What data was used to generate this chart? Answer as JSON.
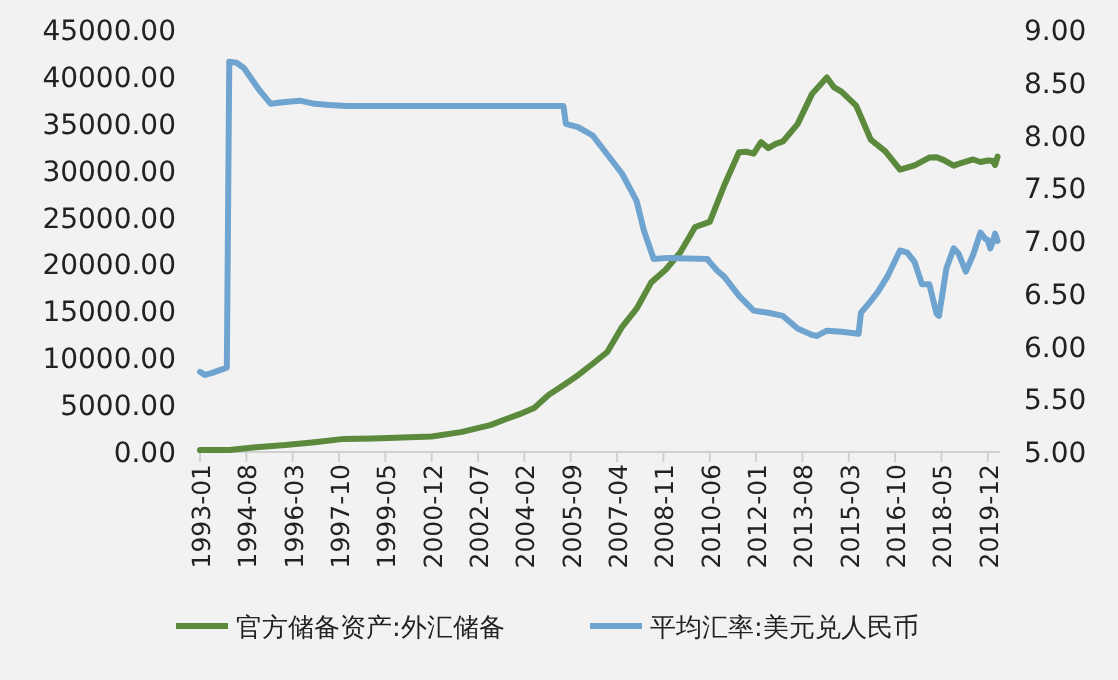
{
  "chart_data": {
    "type": "line",
    "legend": "bottom",
    "xlim": [
      "1993-01",
      "2020-05"
    ],
    "xticks": [
      "1993-01",
      "1994-08",
      "1996-03",
      "1997-10",
      "1999-05",
      "2000-12",
      "2002-07",
      "2004-02",
      "2005-09",
      "2007-04",
      "2008-11",
      "2010-06",
      "2012-01",
      "2013-08",
      "2015-03",
      "2016-10",
      "2018-05",
      "2019-12"
    ],
    "ylim": [
      0,
      45000
    ],
    "yticks": [
      {
        "value": 0,
        "label": "0.00"
      },
      {
        "value": 5000,
        "label": "5000.00"
      },
      {
        "value": 10000,
        "label": "10000.00"
      },
      {
        "value": 15000,
        "label": "15000.00"
      },
      {
        "value": 20000,
        "label": "20000.00"
      },
      {
        "value": 25000,
        "label": "25000.00"
      },
      {
        "value": 30000,
        "label": "30000.00"
      },
      {
        "value": 35000,
        "label": "35000.00"
      },
      {
        "value": 40000,
        "label": "40000.00"
      },
      {
        "value": 45000,
        "label": "45000.00"
      }
    ],
    "y2lim": [
      5,
      9
    ],
    "y2ticks": [
      {
        "value": 5,
        "label": "5.00"
      },
      {
        "value": 5.5,
        "label": "5.50"
      },
      {
        "value": 6,
        "label": "6.00"
      },
      {
        "value": 6.5,
        "label": "6.50"
      },
      {
        "value": 7,
        "label": "7.00"
      },
      {
        "value": 7.5,
        "label": "7.50"
      },
      {
        "value": 8,
        "label": "8.00"
      },
      {
        "value": 8.5,
        "label": "8.50"
      },
      {
        "value": 9,
        "label": "9.00"
      }
    ],
    "series": [
      {
        "name": "官方储备资产:外汇储备",
        "color": "#5b8a3c",
        "x": [
          "1993-01",
          "1994-01",
          "1994-12",
          "1995-12",
          "1996-12",
          "1997-12",
          "1998-12",
          "1999-12",
          "2000-12",
          "2001-12",
          "2002-12",
          "2003-06",
          "2003-12",
          "2004-06",
          "2004-12",
          "2005-06",
          "2005-12",
          "2006-06",
          "2006-12",
          "2007-06",
          "2007-12",
          "2008-06",
          "2008-12",
          "2009-06",
          "2009-12",
          "2010-06",
          "2010-12",
          "2011-06",
          "2011-09",
          "2011-12",
          "2012-03",
          "2012-06",
          "2012-09",
          "2012-12",
          "2013-06",
          "2013-12",
          "2014-06",
          "2014-09",
          "2014-12",
          "2015-06",
          "2015-09",
          "2015-12",
          "2016-06",
          "2016-12",
          "2017-06",
          "2017-12",
          "2018-03",
          "2018-06",
          "2018-10",
          "2018-12",
          "2019-06",
          "2019-09",
          "2019-12",
          "2020-02",
          "2020-03",
          "2020-04"
        ],
        "values": [
          200,
          220,
          516,
          736,
          1050,
          1399,
          1450,
          1547,
          1656,
          2122,
          2864,
          3465,
          4033,
          4700,
          6099,
          7110,
          8189,
          9411,
          10663,
          13326,
          15282,
          18088,
          19460,
          21316,
          23992,
          24543,
          28473,
          31975,
          32017,
          31811,
          33050,
          32400,
          32850,
          33116,
          34967,
          38213,
          39932,
          38877,
          38430,
          36938,
          35141,
          33304,
          32052,
          30105,
          30568,
          31399,
          31428,
          31121,
          30531,
          30727,
          31192,
          30924,
          31079,
          31067,
          30606,
          31500
        ]
      },
      {
        "name": "平均汇率:美元兑人民币",
        "color": "#6fa3d0",
        "axis": "y2",
        "x": [
          "1993-01",
          "1993-03",
          "1993-06",
          "1993-12",
          "1994-01",
          "1994-04",
          "1994-07",
          "1994-10",
          "1995-01",
          "1995-06",
          "1995-09",
          "1996-01",
          "1996-06",
          "1996-12",
          "1997-06",
          "1998-01",
          "2005-06",
          "2005-07",
          "2005-12",
          "2006-06",
          "2006-12",
          "2007-06",
          "2007-12",
          "2008-03",
          "2008-07",
          "2009-01",
          "2010-05",
          "2010-06",
          "2010-09",
          "2010-12",
          "2011-06",
          "2011-12",
          "2012-06",
          "2012-12",
          "2013-06",
          "2013-12",
          "2014-02",
          "2014-06",
          "2014-12",
          "2015-07",
          "2015-08",
          "2015-12",
          "2016-03",
          "2016-07",
          "2016-12",
          "2017-03",
          "2017-06",
          "2017-09",
          "2017-12",
          "2018-03",
          "2018-04",
          "2018-07",
          "2018-10",
          "2018-12",
          "2019-03",
          "2019-06",
          "2019-09",
          "2019-11",
          "2019-12",
          "2020-01",
          "2020-02",
          "2020-03",
          "2020-04"
        ],
        "values": [
          5.76,
          5.73,
          5.75,
          5.8,
          8.7,
          8.69,
          8.64,
          8.54,
          8.44,
          8.3,
          8.31,
          8.32,
          8.33,
          8.3,
          8.29,
          8.28,
          8.28,
          8.11,
          8.08,
          8.0,
          7.82,
          7.64,
          7.38,
          7.1,
          6.83,
          6.84,
          6.83,
          6.8,
          6.72,
          6.66,
          6.48,
          6.34,
          6.32,
          6.29,
          6.17,
          6.11,
          6.1,
          6.15,
          6.14,
          6.12,
          6.32,
          6.43,
          6.52,
          6.67,
          6.91,
          6.89,
          6.8,
          6.59,
          6.59,
          6.31,
          6.29,
          6.74,
          6.93,
          6.88,
          6.71,
          6.87,
          7.08,
          7.02,
          7.01,
          6.93,
          6.99,
          7.07,
          7.0
        ]
      }
    ]
  }
}
